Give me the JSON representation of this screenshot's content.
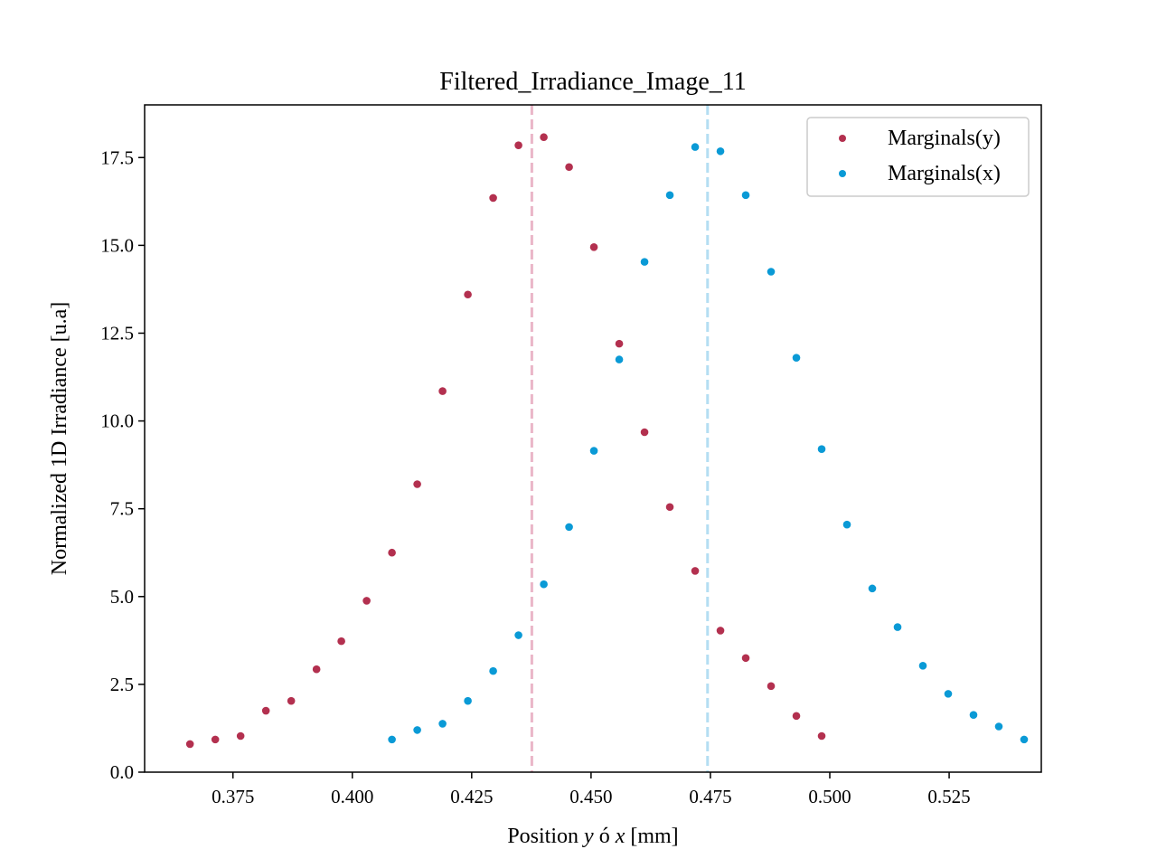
{
  "chart_data": {
    "type": "scatter",
    "title": "Filtered_Irradiance_Image_11",
    "xlabel_prefix": "Position ",
    "xlabel_var1": "y",
    "xlabel_mid": " ó ",
    "xlabel_var2": "x",
    "xlabel_suffix": " [mm]",
    "ylabel": "Normalized 1D Irradiance [u.a]",
    "xlim": [
      0.3565,
      0.5443
    ],
    "ylim": [
      0,
      19.0
    ],
    "xticks": [
      0.375,
      0.4,
      0.425,
      0.45,
      0.475,
      0.5,
      0.525
    ],
    "xtick_labels": [
      "0.375",
      "0.400",
      "0.425",
      "0.450",
      "0.475",
      "0.500",
      "0.525"
    ],
    "yticks": [
      0,
      2.5,
      5,
      7.5,
      10,
      12.5,
      15,
      17.5
    ],
    "ytick_labels": [
      "0.0",
      "2.5",
      "5.0",
      "7.5",
      "10.0",
      "12.5",
      "15.0",
      "17.5"
    ],
    "grid": false,
    "legend_position": "top-right",
    "series": [
      {
        "name": "Marginals(y)",
        "color": "#b3304f",
        "x": [
          0.366,
          0.3713,
          0.3766,
          0.3819,
          0.3872,
          0.3925,
          0.3977,
          0.403,
          0.4083,
          0.4136,
          0.4189,
          0.4242,
          0.4295,
          0.4348,
          0.4401,
          0.4454,
          0.4506,
          0.4559,
          0.4612,
          0.4665,
          0.4718,
          0.4771,
          0.4824,
          0.4877,
          0.493,
          0.4983
        ],
        "y": [
          0.8,
          0.93,
          1.03,
          1.75,
          2.03,
          2.93,
          3.73,
          4.88,
          6.25,
          8.2,
          10.85,
          13.6,
          16.35,
          17.85,
          18.08,
          17.23,
          14.95,
          12.2,
          9.68,
          7.55,
          5.73,
          4.03,
          3.25,
          2.45,
          1.6,
          1.03
        ]
      },
      {
        "name": "Marginals(x)",
        "color": "#0a9ad6",
        "x": [
          0.4083,
          0.4136,
          0.4189,
          0.4242,
          0.4295,
          0.4348,
          0.4401,
          0.4454,
          0.4506,
          0.4559,
          0.4612,
          0.4665,
          0.4718,
          0.4771,
          0.4824,
          0.4877,
          0.493,
          0.4983,
          0.5036,
          0.5089,
          0.5142,
          0.5195,
          0.5248,
          0.5301,
          0.5354,
          0.5407
        ],
        "y": [
          0.93,
          1.2,
          1.38,
          2.03,
          2.88,
          3.9,
          5.35,
          6.98,
          9.15,
          11.75,
          14.53,
          16.43,
          17.8,
          17.68,
          16.43,
          14.25,
          11.8,
          9.2,
          7.05,
          5.23,
          4.13,
          3.03,
          2.23,
          1.63,
          1.3,
          0.93
        ]
      }
    ],
    "reference_lines": [
      {
        "x": 0.4376,
        "color": "#eab6c8",
        "style": "dashed"
      },
      {
        "x": 0.4744,
        "color": "#b4def2",
        "style": "dashed"
      }
    ]
  }
}
